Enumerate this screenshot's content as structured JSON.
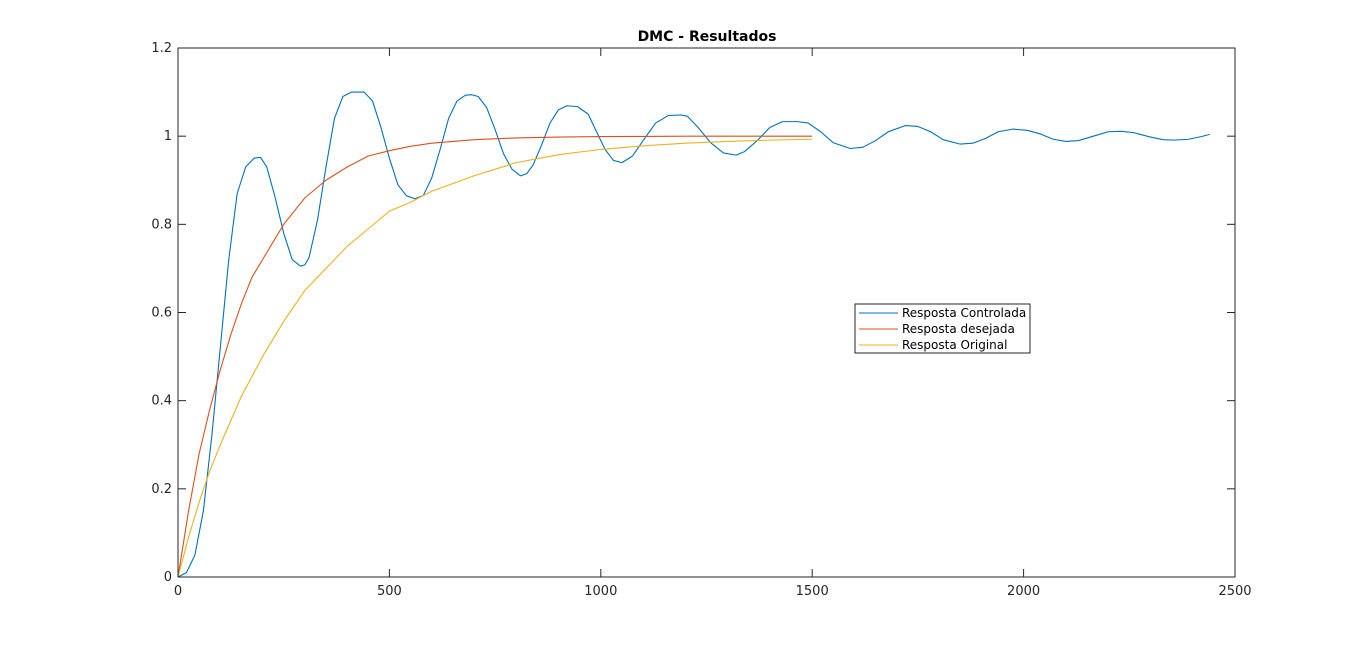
{
  "chart_data": {
    "type": "line",
    "title": "DMC - Resultados",
    "xlabel": "",
    "ylabel": "",
    "xlim": [
      0,
      2500
    ],
    "ylim": [
      0,
      1.2
    ],
    "xticks": [
      0,
      500,
      1000,
      1500,
      2000,
      2500
    ],
    "yticks": [
      0,
      0.2,
      0.4,
      0.6,
      0.8,
      1,
      1.2
    ],
    "xtick_labels": [
      "0",
      "500",
      "1000",
      "1500",
      "2000",
      "2500"
    ],
    "ytick_labels": [
      "0",
      "0.2",
      "0.4",
      "0.6",
      "0.8",
      "1",
      "1.2"
    ],
    "grid": false,
    "legend_position": "right-middle",
    "series": [
      {
        "name": "Resposta Controlada",
        "color": "#0072BD",
        "x": [
          0,
          20,
          40,
          60,
          80,
          100,
          120,
          140,
          160,
          180,
          195,
          210,
          230,
          250,
          270,
          290,
          300,
          310,
          330,
          350,
          370,
          390,
          410,
          425,
          440,
          460,
          480,
          500,
          520,
          540,
          560,
          580,
          600,
          620,
          640,
          660,
          680,
          695,
          710,
          730,
          750,
          770,
          790,
          810,
          825,
          840,
          860,
          880,
          900,
          920,
          945,
          970,
          990,
          1010,
          1030,
          1050,
          1075,
          1100,
          1130,
          1160,
          1190,
          1205,
          1230,
          1260,
          1290,
          1320,
          1340,
          1370,
          1400,
          1430,
          1465,
          1490,
          1520,
          1550,
          1590,
          1620,
          1650,
          1680,
          1720,
          1750,
          1780,
          1810,
          1850,
          1880,
          1910,
          1940,
          1975,
          2010,
          2040,
          2070,
          2100,
          2130,
          2165,
          2200,
          2230,
          2260,
          2300,
          2330,
          2355,
          2390,
          2420,
          2440
        ],
        "y": [
          0,
          0.01,
          0.05,
          0.15,
          0.32,
          0.52,
          0.72,
          0.87,
          0.93,
          0.95,
          0.952,
          0.93,
          0.86,
          0.78,
          0.72,
          0.705,
          0.708,
          0.725,
          0.81,
          0.93,
          1.04,
          1.09,
          1.1,
          1.1,
          1.1,
          1.08,
          1.02,
          0.95,
          0.89,
          0.865,
          0.858,
          0.865,
          0.905,
          0.97,
          1.04,
          1.08,
          1.093,
          1.094,
          1.09,
          1.065,
          1.015,
          0.96,
          0.925,
          0.91,
          0.915,
          0.935,
          0.98,
          1.03,
          1.06,
          1.069,
          1.067,
          1.05,
          1.01,
          0.97,
          0.945,
          0.94,
          0.955,
          0.99,
          1.03,
          1.047,
          1.048,
          1.045,
          1.02,
          0.985,
          0.962,
          0.957,
          0.965,
          0.99,
          1.02,
          1.033,
          1.033,
          1.03,
          1.01,
          0.985,
          0.972,
          0.975,
          0.99,
          1.01,
          1.024,
          1.022,
          1.01,
          0.992,
          0.982,
          0.984,
          0.995,
          1.01,
          1.016,
          1.013,
          1.005,
          0.993,
          0.988,
          0.99,
          1.0,
          1.01,
          1.011,
          1.008,
          0.998,
          0.992,
          0.991,
          0.993,
          0.999,
          1.004
        ]
      },
      {
        "name": "Resposta desejada",
        "color": "#D95319",
        "x": [
          0,
          25,
          50,
          75,
          100,
          125,
          150,
          175,
          200,
          250,
          300,
          350,
          400,
          450,
          500,
          550,
          600,
          700,
          800,
          900,
          1000,
          1100,
          1200,
          1300,
          1400,
          1500
        ],
        "y": [
          0,
          0.15,
          0.28,
          0.38,
          0.47,
          0.55,
          0.62,
          0.68,
          0.72,
          0.8,
          0.86,
          0.9,
          0.93,
          0.955,
          0.967,
          0.977,
          0.984,
          0.992,
          0.996,
          0.998,
          0.999,
          0.9995,
          1.0,
          1.0,
          1.0,
          1.0
        ]
      },
      {
        "name": "Resposta Original",
        "color": "#EDB120",
        "x": [
          0,
          25,
          50,
          75,
          100,
          150,
          200,
          250,
          300,
          350,
          400,
          450,
          500,
          550,
          600,
          700,
          800,
          900,
          1000,
          1100,
          1200,
          1300,
          1400,
          1500
        ],
        "y": [
          0,
          0.09,
          0.17,
          0.24,
          0.3,
          0.41,
          0.5,
          0.58,
          0.65,
          0.7,
          0.75,
          0.79,
          0.83,
          0.85,
          0.875,
          0.91,
          0.94,
          0.958,
          0.97,
          0.978,
          0.984,
          0.988,
          0.991,
          0.993
        ]
      }
    ]
  }
}
